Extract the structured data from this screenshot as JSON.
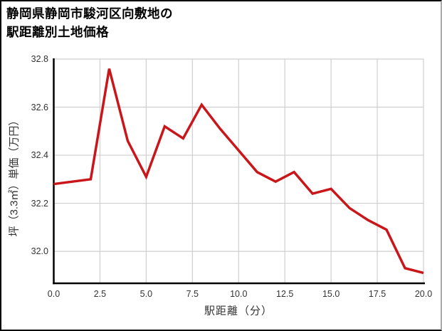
{
  "header": {
    "title_line1": "静岡県静岡市駿河区向敷地の",
    "title_line2": "駅距離別土地価格"
  },
  "chart_data": {
    "type": "line",
    "title": "静岡県静岡市駿河区向敷地の駅距離別土地価格",
    "xlabel": "駅距離（分）",
    "ylabel": "坪（3.3㎡）単価（万円）",
    "x": [
      0,
      1,
      2,
      3,
      4,
      5,
      6,
      7,
      8,
      9,
      10,
      11,
      12,
      13,
      14,
      15,
      16,
      17,
      18,
      19,
      20
    ],
    "values": [
      32.28,
      32.29,
      32.3,
      32.76,
      32.46,
      32.31,
      32.52,
      32.47,
      32.61,
      32.51,
      32.42,
      32.33,
      32.29,
      32.33,
      32.24,
      32.26,
      32.18,
      32.13,
      32.09,
      31.93,
      31.91
    ],
    "x_ticks": [
      "0.0",
      "2.5",
      "5.0",
      "7.5",
      "10.0",
      "12.5",
      "15.0",
      "17.5",
      "20.0"
    ],
    "y_ticks": [
      "32.0",
      "32.2",
      "32.4",
      "32.6",
      "32.8"
    ],
    "xlim": [
      0,
      20
    ],
    "ylim": [
      31.867,
      32.8
    ],
    "grid": true,
    "legend_position": "none",
    "line_color": "#c9161a",
    "grid_color": "#cfcfcf",
    "spine_color": "#000000",
    "tick_color": "#333333",
    "title_color": "#000000"
  }
}
